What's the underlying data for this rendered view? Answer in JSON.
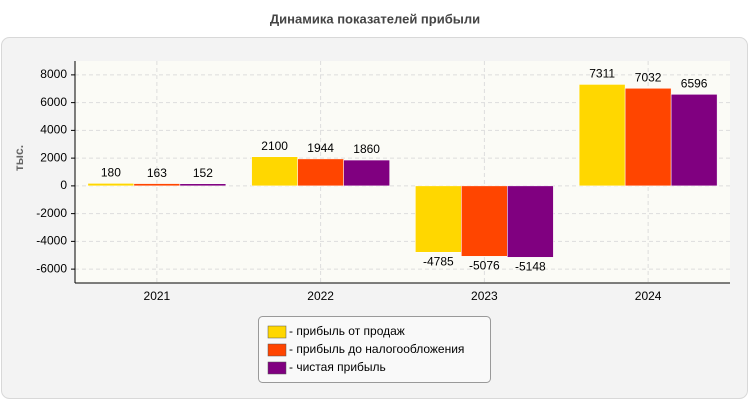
{
  "chart_data": {
    "type": "bar",
    "title": "Динамика показателей прибыли",
    "ylabel": "тыс.",
    "categories": [
      "2021",
      "2022",
      "2023",
      "2024"
    ],
    "series": [
      {
        "name": "- прибыль от продаж",
        "color": "#ffd700",
        "values": [
          180,
          2100,
          -4785,
          7311
        ]
      },
      {
        "name": "- прибыль до налогообложения",
        "color": "#ff4500",
        "values": [
          163,
          1944,
          -5076,
          7032
        ]
      },
      {
        "name": "- чистая прибыль",
        "color": "#800080",
        "values": [
          152,
          1860,
          -5148,
          6596
        ]
      }
    ],
    "ylim": [
      -7000,
      9000
    ],
    "yticks": [
      -6000,
      -4000,
      -2000,
      0,
      2000,
      4000,
      6000,
      8000
    ],
    "grid": true
  }
}
